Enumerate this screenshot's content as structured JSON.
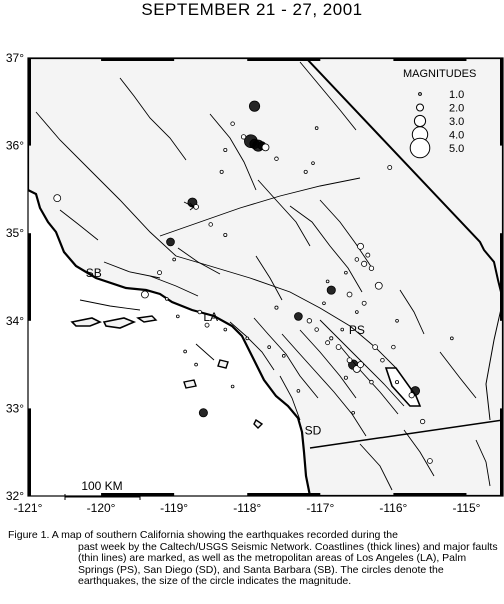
{
  "title": "SEPTEMBER 21 - 27, 2001",
  "legend": {
    "heading": "MAGNITUDES",
    "items": [
      {
        "label": "1.0",
        "magnitude": 1.0
      },
      {
        "label": "2.0",
        "magnitude": 2.0
      },
      {
        "label": "3.0",
        "magnitude": 3.0
      },
      {
        "label": "4.0",
        "magnitude": 4.0
      },
      {
        "label": "5.0",
        "magnitude": 5.0
      }
    ]
  },
  "axes": {
    "lon_range": [
      -121,
      -114.5
    ],
    "lat_range": [
      32,
      37
    ],
    "x_ticks": [
      {
        "value": -121,
        "label": "-121°"
      },
      {
        "value": -120,
        "label": "-120°"
      },
      {
        "value": -119,
        "label": "-119°"
      },
      {
        "value": -118,
        "label": "-118°"
      },
      {
        "value": -117,
        "label": "-117°"
      },
      {
        "value": -116,
        "label": "-116°"
      },
      {
        "value": -115,
        "label": "-115°"
      }
    ],
    "y_ticks": [
      {
        "value": 32,
        "label": "32°"
      },
      {
        "value": 33,
        "label": "33°"
      },
      {
        "value": 34,
        "label": "34°"
      },
      {
        "value": 35,
        "label": "35°"
      },
      {
        "value": 36,
        "label": "36°"
      },
      {
        "value": 37,
        "label": "37°"
      }
    ]
  },
  "cities": [
    {
      "code": "SB",
      "lon": -120.1,
      "lat": 34.5
    },
    {
      "code": "LA",
      "lon": -118.5,
      "lat": 34.0
    },
    {
      "code": "PS",
      "lon": -116.5,
      "lat": 33.85
    },
    {
      "code": "SD",
      "lon": -117.1,
      "lat": 32.7
    }
  ],
  "scale_bar": {
    "label": "100 KM"
  },
  "earthquakes": [
    {
      "lon": -117.9,
      "lat": 36.45,
      "mag": 2.8
    },
    {
      "lon": -117.95,
      "lat": 36.05,
      "mag": 3.4
    },
    {
      "lon": -117.85,
      "lat": 36.0,
      "mag": 3.0
    },
    {
      "lon": -117.9,
      "lat": 36.02,
      "mag": 2.6
    },
    {
      "lon": -117.8,
      "lat": 36.0,
      "mag": 2.2
    },
    {
      "lon": -117.75,
      "lat": 35.98,
      "mag": 2.0
    },
    {
      "lon": -118.05,
      "lat": 36.1,
      "mag": 1.4
    },
    {
      "lon": -118.2,
      "lat": 36.25,
      "mag": 1.2
    },
    {
      "lon": -118.3,
      "lat": 35.95,
      "mag": 1.1
    },
    {
      "lon": -118.35,
      "lat": 35.7,
      "mag": 1.1
    },
    {
      "lon": -117.6,
      "lat": 35.85,
      "mag": 1.2
    },
    {
      "lon": -117.2,
      "lat": 35.7,
      "mag": 1.1
    },
    {
      "lon": -117.1,
      "lat": 35.8,
      "mag": 1.0
    },
    {
      "lon": -116.05,
      "lat": 35.75,
      "mag": 1.3
    },
    {
      "lon": -117.05,
      "lat": 36.2,
      "mag": 1.0
    },
    {
      "lon": -120.6,
      "lat": 35.4,
      "mag": 2.0
    },
    {
      "lon": -118.75,
      "lat": 35.35,
      "mag": 2.5
    },
    {
      "lon": -118.7,
      "lat": 35.3,
      "mag": 1.5
    },
    {
      "lon": -119.05,
      "lat": 34.9,
      "mag": 2.2
    },
    {
      "lon": -118.5,
      "lat": 35.1,
      "mag": 1.2
    },
    {
      "lon": -118.3,
      "lat": 34.98,
      "mag": 1.1
    },
    {
      "lon": -119.0,
      "lat": 34.7,
      "mag": 1.0
    },
    {
      "lon": -119.2,
      "lat": 34.55,
      "mag": 1.3
    },
    {
      "lon": -119.4,
      "lat": 34.3,
      "mag": 2.0
    },
    {
      "lon": -119.1,
      "lat": 34.25,
      "mag": 1.0
    },
    {
      "lon": -118.65,
      "lat": 34.1,
      "mag": 1.2
    },
    {
      "lon": -118.55,
      "lat": 33.95,
      "mag": 1.3
    },
    {
      "lon": -118.3,
      "lat": 33.9,
      "mag": 1.0
    },
    {
      "lon": -118.7,
      "lat": 33.5,
      "mag": 1.0
    },
    {
      "lon": -118.2,
      "lat": 33.25,
      "mag": 1.0
    },
    {
      "lon": -118.6,
      "lat": 32.95,
      "mag": 2.3
    },
    {
      "lon": -118.0,
      "lat": 33.8,
      "mag": 1.0
    },
    {
      "lon": -117.6,
      "lat": 34.15,
      "mag": 1.1
    },
    {
      "lon": -117.3,
      "lat": 34.05,
      "mag": 2.2
    },
    {
      "lon": -117.15,
      "lat": 34.0,
      "mag": 1.4
    },
    {
      "lon": -117.05,
      "lat": 33.9,
      "mag": 1.2
    },
    {
      "lon": -116.9,
      "lat": 33.75,
      "mag": 1.3
    },
    {
      "lon": -116.75,
      "lat": 33.7,
      "mag": 1.5
    },
    {
      "lon": -116.85,
      "lat": 33.8,
      "mag": 1.1
    },
    {
      "lon": -116.7,
      "lat": 33.9,
      "mag": 1.0
    },
    {
      "lon": -116.95,
      "lat": 34.2,
      "mag": 1.0
    },
    {
      "lon": -116.85,
      "lat": 34.35,
      "mag": 2.3
    },
    {
      "lon": -116.6,
      "lat": 34.3,
      "mag": 1.5
    },
    {
      "lon": -116.4,
      "lat": 34.2,
      "mag": 1.3
    },
    {
      "lon": -116.2,
      "lat": 34.4,
      "mag": 2.0
    },
    {
      "lon": -116.3,
      "lat": 34.6,
      "mag": 1.4
    },
    {
      "lon": -116.4,
      "lat": 34.65,
      "mag": 1.6
    },
    {
      "lon": -116.45,
      "lat": 34.85,
      "mag": 1.8
    },
    {
      "lon": -116.5,
      "lat": 34.7,
      "mag": 1.2
    },
    {
      "lon": -116.35,
      "lat": 34.75,
      "mag": 1.3
    },
    {
      "lon": -116.65,
      "lat": 34.55,
      "mag": 1.0
    },
    {
      "lon": -116.9,
      "lat": 34.45,
      "mag": 1.0
    },
    {
      "lon": -116.55,
      "lat": 33.5,
      "mag": 2.6
    },
    {
      "lon": -116.5,
      "lat": 33.45,
      "mag": 2.0
    },
    {
      "lon": -116.45,
      "lat": 33.5,
      "mag": 1.8
    },
    {
      "lon": -116.6,
      "lat": 33.55,
      "mag": 1.5
    },
    {
      "lon": -116.65,
      "lat": 33.35,
      "mag": 1.1
    },
    {
      "lon": -116.3,
      "lat": 33.3,
      "mag": 1.2
    },
    {
      "lon": -116.25,
      "lat": 33.7,
      "mag": 1.5
    },
    {
      "lon": -116.15,
      "lat": 33.55,
      "mag": 1.2
    },
    {
      "lon": -115.95,
      "lat": 33.3,
      "mag": 1.1
    },
    {
      "lon": -115.7,
      "lat": 33.2,
      "mag": 2.4
    },
    {
      "lon": -115.75,
      "lat": 33.15,
      "mag": 1.6
    },
    {
      "lon": -116.0,
      "lat": 33.7,
      "mag": 1.2
    },
    {
      "lon": -115.6,
      "lat": 32.85,
      "mag": 1.4
    },
    {
      "lon": -115.5,
      "lat": 32.4,
      "mag": 1.5
    },
    {
      "lon": -116.55,
      "lat": 32.95,
      "mag": 1.0
    },
    {
      "lon": -117.3,
      "lat": 33.2,
      "mag": 1.0
    },
    {
      "lon": -117.5,
      "lat": 33.6,
      "mag": 1.0
    },
    {
      "lon": -117.7,
      "lat": 33.7,
      "mag": 1.0
    },
    {
      "lon": -116.5,
      "lat": 34.1,
      "mag": 1.0
    },
    {
      "lon": -115.95,
      "lat": 34.0,
      "mag": 1.0
    },
    {
      "lon": -115.2,
      "lat": 33.8,
      "mag": 1.0
    },
    {
      "lon": -118.85,
      "lat": 33.65,
      "mag": 1.0
    },
    {
      "lon": -118.95,
      "lat": 34.05,
      "mag": 1.0
    }
  ],
  "caption": {
    "prefix": "Figure 1.",
    "text_line1": "A map of southern California showing the earthquakes recorded during the",
    "text_rest": "past week by the Caltech/USGS Seismic Network.  Coastlines (thick lines) and major faults (thin lines) are marked, as well as the metropolitan areas of Los Angeles (LA), Palm Springs (PS), San Diego (SD), and Santa Barbara (SB).  The circles denote the earthquakes, the size of the circle indicates the magnitude."
  },
  "colors": {
    "ocean": "#ffffff",
    "land": "#f4f4f4",
    "frame": "#000000",
    "quake_fill": "#000000"
  }
}
